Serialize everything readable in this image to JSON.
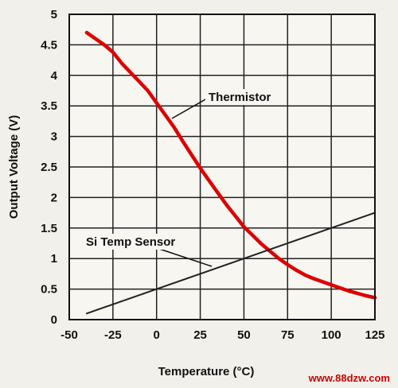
{
  "chart_data": {
    "type": "line",
    "title": "",
    "xlabel": "Temperature (°C)",
    "ylabel": "Output Voltage (V)",
    "xlim": [
      -50,
      125
    ],
    "ylim": [
      0,
      5
    ],
    "x_ticks": [
      "-50",
      "-25",
      "0",
      "25",
      "50",
      "75",
      "100",
      "125"
    ],
    "y_ticks": [
      "0",
      "0.5",
      "1",
      "1.5",
      "2",
      "2.5",
      "3",
      "3.5",
      "4",
      "4.5",
      "5"
    ],
    "grid": true,
    "legend": "none",
    "series": [
      {
        "name": "Thermistor",
        "color": "#dd0000",
        "x": [
          -40,
          -35,
          -30,
          -25,
          -20,
          -15,
          -10,
          -5,
          0,
          5,
          10,
          15,
          20,
          25,
          30,
          35,
          40,
          45,
          50,
          55,
          60,
          65,
          70,
          75,
          80,
          85,
          90,
          95,
          100,
          105,
          110,
          115,
          120,
          125
        ],
        "y": [
          4.7,
          4.6,
          4.5,
          4.38,
          4.2,
          4.05,
          3.9,
          3.75,
          3.55,
          3.35,
          3.15,
          2.92,
          2.7,
          2.48,
          2.28,
          2.08,
          1.88,
          1.7,
          1.52,
          1.38,
          1.24,
          1.12,
          1.0,
          0.9,
          0.81,
          0.73,
          0.67,
          0.62,
          0.57,
          0.52,
          0.47,
          0.43,
          0.39,
          0.36
        ]
      },
      {
        "name": "Si Temp Sensor",
        "color": "#222222",
        "x": [
          -40,
          125
        ],
        "y": [
          0.1,
          1.75
        ]
      }
    ],
    "annotations": [
      {
        "text": "Thermistor",
        "series": 0
      },
      {
        "text": "Si Temp Sensor",
        "series": 1
      }
    ]
  },
  "watermark": "www.88dzw.com"
}
